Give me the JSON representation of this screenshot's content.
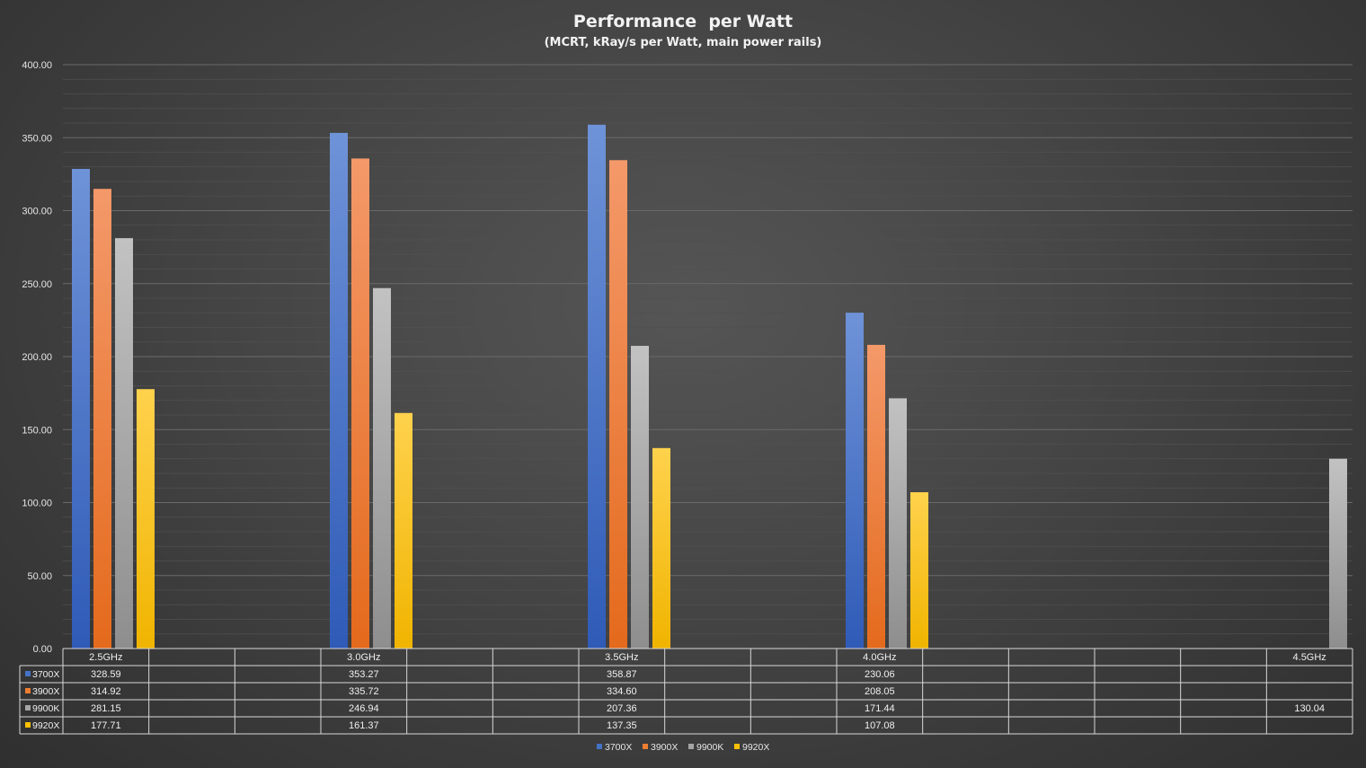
{
  "chart_data": {
    "type": "bar",
    "title": "Performance  per Watt",
    "subtitle": "(MCRT, kRay/s per Watt, main power rails)",
    "categories": [
      "2.5GHz",
      "3.0GHz",
      "3.5GHz",
      "4.0GHz",
      "4.5GHz"
    ],
    "ylim": [
      0,
      400
    ],
    "yticks": [
      "0.00",
      "50.00",
      "100.00",
      "150.00",
      "200.00",
      "250.00",
      "300.00",
      "350.00",
      "400.00"
    ],
    "grid": true,
    "legend_position": "bottom",
    "data_table": true,
    "series": [
      {
        "name": "3700X",
        "color": "#4472c4",
        "values": [
          328.59,
          353.27,
          358.87,
          230.06,
          null
        ],
        "labels": [
          "328.59",
          "353.27",
          "358.87",
          "230.06",
          ""
        ]
      },
      {
        "name": "3900X",
        "color": "#ed7d31",
        "values": [
          314.92,
          335.72,
          334.6,
          208.05,
          null
        ],
        "labels": [
          "314.92",
          "335.72",
          "334.60",
          "208.05",
          ""
        ]
      },
      {
        "name": "9900K",
        "color": "#a5a5a5",
        "values": [
          281.15,
          246.94,
          207.36,
          171.44,
          130.04
        ],
        "labels": [
          "281.15",
          "246.94",
          "207.36",
          "171.44",
          "130.04"
        ]
      },
      {
        "name": "9920X",
        "color": "#ffc000",
        "values": [
          177.71,
          161.37,
          137.35,
          107.08,
          null
        ],
        "labels": [
          "177.71",
          "161.37",
          "137.35",
          "107.08",
          ""
        ]
      }
    ]
  }
}
